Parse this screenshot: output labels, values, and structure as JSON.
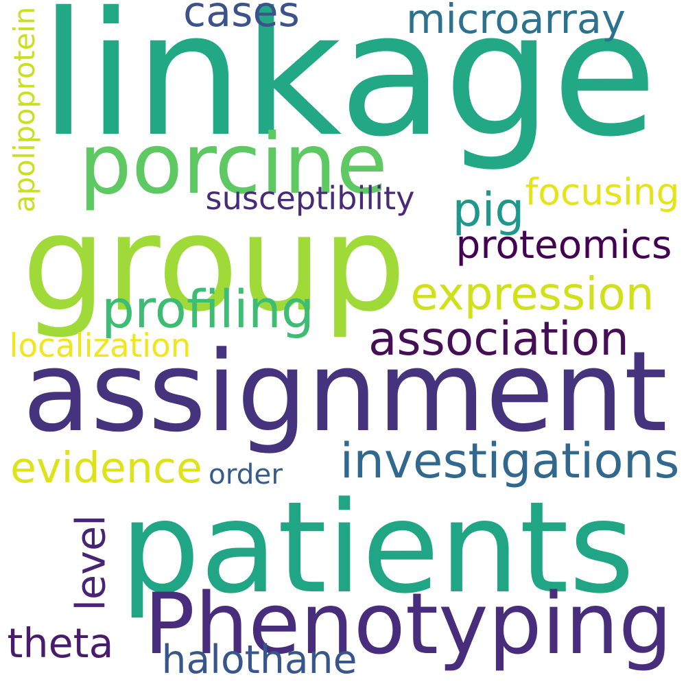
{
  "cloud": {
    "words": [
      {
        "text": "linkage",
        "color": "#22a884"
      },
      {
        "text": "group",
        "color": "#a0da39"
      },
      {
        "text": "assignment",
        "color": "#46337e"
      },
      {
        "text": "patients",
        "color": "#21a685"
      },
      {
        "text": "Phenotyping",
        "color": "#472d7b"
      },
      {
        "text": "porcine",
        "color": "#5ec962"
      },
      {
        "text": "cases",
        "color": "#3b528b"
      },
      {
        "text": "microarray",
        "color": "#2c728e"
      },
      {
        "text": "apolipoprotein",
        "color": "#c8e020"
      },
      {
        "text": "susceptibility",
        "color": "#472a7a"
      },
      {
        "text": "focusing",
        "color": "#e4e419"
      },
      {
        "text": "pig",
        "color": "#1f988b"
      },
      {
        "text": "proteomics",
        "color": "#440154"
      },
      {
        "text": "expression",
        "color": "#d0e11c"
      },
      {
        "text": "profiling",
        "color": "#3dbc74"
      },
      {
        "text": "association",
        "color": "#440f55"
      },
      {
        "text": "localization",
        "color": "#f1e51d"
      },
      {
        "text": "investigations",
        "color": "#31688e"
      },
      {
        "text": "evidence",
        "color": "#dde318"
      },
      {
        "text": "order",
        "color": "#375b8d"
      },
      {
        "text": "level",
        "color": "#482475"
      },
      {
        "text": "theta",
        "color": "#481b6d"
      },
      {
        "text": "halothane",
        "color": "#39568c"
      }
    ]
  }
}
